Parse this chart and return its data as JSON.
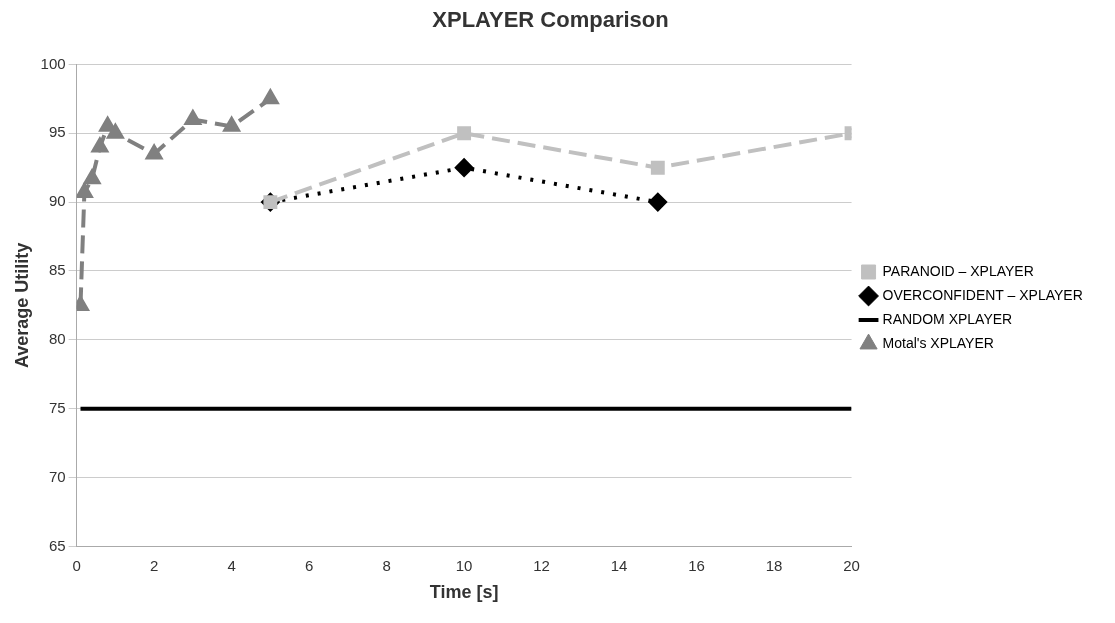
{
  "chart_data": {
    "type": "line",
    "title": "XPLAYER Comparison",
    "xlabel": "Time [s]",
    "ylabel": "Average Utility",
    "xlim": [
      0,
      20
    ],
    "xticks": [
      0,
      2,
      4,
      6,
      8,
      10,
      12,
      14,
      16,
      18,
      20
    ],
    "ylim": [
      65,
      100
    ],
    "yticks": [
      65,
      70,
      75,
      80,
      85,
      90,
      95,
      100
    ],
    "grid": "y",
    "legend": "right",
    "series": [
      {
        "name": "PARANOID – XPLAYER",
        "color": "#c0c0c0",
        "x": [
          5,
          10,
          15,
          20
        ],
        "values": [
          90,
          95,
          92.5,
          95
        ],
        "marker": "square",
        "line_style": "dashed"
      },
      {
        "name": "OVERCONFIDENT – XPLAYER",
        "color": "#000000",
        "x": [
          5,
          10,
          15
        ],
        "values": [
          90,
          92.5,
          90
        ],
        "marker": "diamond",
        "line_style": "dotted"
      },
      {
        "name": "RANDOM XPLAYER",
        "color": "#000000",
        "x": [
          0.1,
          20
        ],
        "values": [
          75,
          75
        ],
        "marker": "none",
        "line_style": "solid"
      },
      {
        "name": "Motal's XPLAYER",
        "color": "#808080",
        "x": [
          0.1,
          0.2,
          0.4,
          0.6,
          0.8,
          1,
          2,
          3,
          4,
          5
        ],
        "values": [
          82.5,
          90.7,
          91.7,
          94,
          95.5,
          95,
          93.5,
          96,
          95.5,
          97.5
        ],
        "marker": "triangle",
        "line_style": "dashed"
      }
    ]
  }
}
